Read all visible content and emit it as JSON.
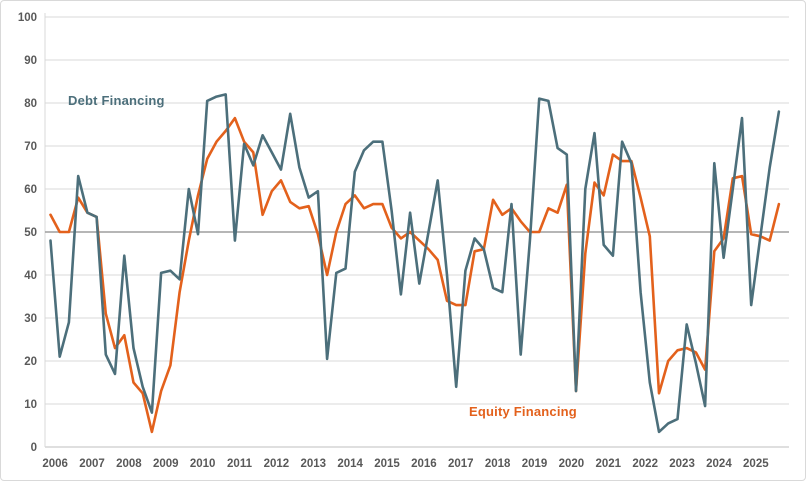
{
  "chart_data": {
    "type": "line",
    "title": "",
    "x_frequency": "quarterly",
    "x_years": [
      2006,
      2007,
      2008,
      2009,
      2010,
      2011,
      2012,
      2013,
      2014,
      2015,
      2016,
      2017,
      2018,
      2019,
      2020,
      2021,
      2022,
      2023,
      2024,
      2025
    ],
    "y_ticks": [
      0,
      10,
      20,
      30,
      40,
      50,
      60,
      70,
      80,
      90,
      100
    ],
    "ylim": [
      0,
      100
    ],
    "reference_line_y": 50,
    "grid": "horizontal",
    "legend_position": "inline-annotations",
    "colors": {
      "debt": "#4C6F7B",
      "equity": "#E3611C",
      "axis_text": "#595959",
      "gridline": "#d9d9d9",
      "reference_line": "#9e9e9e",
      "axis_line": "#bfbfbf"
    },
    "series": [
      {
        "name": "Debt Financing",
        "color": "#4C6F7B",
        "values": [
          48,
          21,
          29,
          63,
          54.5,
          53.5,
          21.5,
          17,
          44.5,
          23,
          14,
          8,
          40.5,
          41,
          39,
          60,
          49.5,
          80.5,
          81.5,
          82,
          48,
          70.5,
          65.5,
          72.5,
          68.5,
          64.5,
          77.5,
          65,
          58,
          59.5,
          20.5,
          40.5,
          41.5,
          64,
          69,
          71,
          71,
          55,
          35.5,
          54.5,
          38,
          50,
          62,
          40,
          14,
          41,
          48.5,
          46,
          37,
          36,
          56.5,
          21.5,
          48,
          81,
          80.5,
          69.5,
          68,
          13,
          60,
          73,
          47,
          44.5,
          71,
          66,
          36,
          15,
          3.5,
          5.5,
          6.5,
          28.5,
          19.5,
          9.5,
          66,
          44,
          60,
          76.5,
          33,
          49,
          65,
          78
        ]
      },
      {
        "name": "Equity Financing",
        "color": "#E3611C",
        "values": [
          54,
          50,
          50,
          58,
          54.5,
          53.5,
          31,
          23,
          26,
          15,
          12.5,
          3.5,
          13,
          19,
          36,
          48,
          58.5,
          67,
          71,
          73.5,
          76.5,
          71,
          68.5,
          54,
          59.5,
          62,
          57,
          55.5,
          56,
          49.5,
          40,
          50,
          56.5,
          58.5,
          55.5,
          56.5,
          56.5,
          51,
          48.5,
          50,
          48,
          46,
          43.5,
          34,
          33,
          33,
          45.5,
          46,
          57.5,
          54,
          55.5,
          52.5,
          50,
          50,
          55.5,
          54.5,
          61,
          13,
          45,
          61.5,
          58.5,
          68,
          66.5,
          66.5,
          58,
          49,
          12.5,
          20,
          22.5,
          23,
          22,
          18,
          45.5,
          48.5,
          62.5,
          63,
          49.5,
          49,
          48,
          56.5
        ]
      }
    ]
  }
}
